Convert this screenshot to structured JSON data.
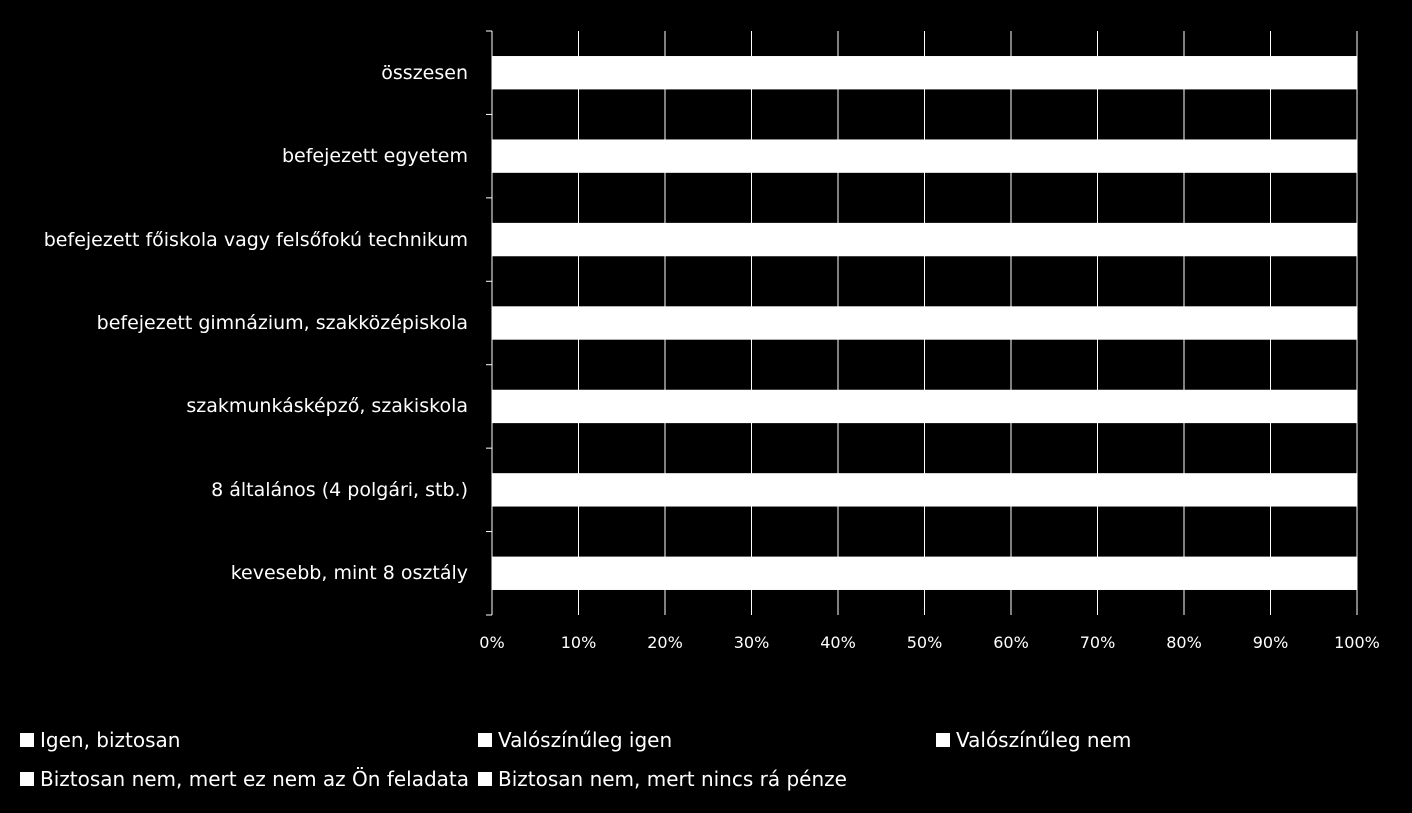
{
  "chart_data": {
    "type": "bar",
    "orientation": "horizontal",
    "stacked": true,
    "percent": true,
    "categories": [
      "összesen",
      "befejezett egyetem",
      "befejezett főiskola vagy felsőfokú technikum",
      "befejezett gimnázium, szakközépiskola",
      "szakmunkásképző, szakiskola",
      "8 általános (4 polgári, stb.)",
      "kevesebb, mint 8 osztály"
    ],
    "x_ticks": [
      "0%",
      "10%",
      "20%",
      "30%",
      "40%",
      "50%",
      "60%",
      "70%",
      "80%",
      "90%",
      "100%"
    ],
    "xlim": [
      0,
      100
    ],
    "grid": true,
    "bar_total_percent": [
      100,
      100,
      100,
      100,
      100,
      100,
      100
    ],
    "legend": [
      {
        "name": "Igen, biztosan",
        "color": "#ffffff"
      },
      {
        "name": "Valószínűleg igen",
        "color": "#ffffff"
      },
      {
        "name": "Valószínűleg nem",
        "color": "#ffffff"
      },
      {
        "name": "Biztosan nem, mert ez nem az Ön feladata",
        "color": "#ffffff"
      },
      {
        "name": "Biztosan nem, mert nincs rá pénze",
        "color": "#ffffff"
      }
    ],
    "legend_position": "bottom",
    "colors": {
      "background": "#000000",
      "bar": "#ffffff",
      "grid": "#ffffff",
      "text": "#ffffff"
    }
  }
}
